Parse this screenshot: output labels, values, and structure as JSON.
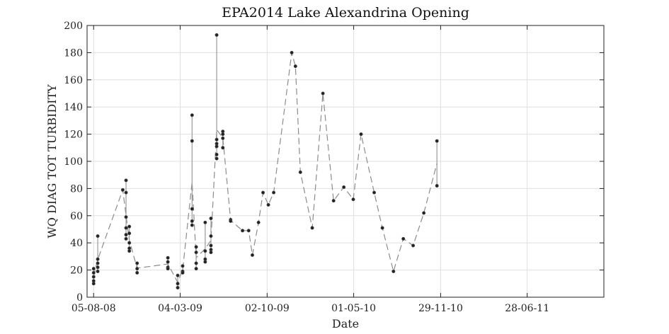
{
  "chart_data": {
    "type": "scatter",
    "title": "EPA2014 Lake Alexandrina Opening",
    "xlabel": "Date",
    "ylabel": "WQ DIAG TOT TURBIDITY",
    "xlim": [
      "2008-07-20",
      "2012-01-01"
    ],
    "ylim": [
      0,
      200
    ],
    "yticks": [
      0,
      20,
      40,
      60,
      80,
      100,
      120,
      140,
      160,
      180,
      200
    ],
    "xticks": [
      {
        "date": "2008-08-05",
        "label": "05-08-08"
      },
      {
        "date": "2009-03-04",
        "label": "04-03-09"
      },
      {
        "date": "2009-10-02",
        "label": "02-10-09"
      },
      {
        "date": "2010-05-01",
        "label": "01-05-10"
      },
      {
        "date": "2010-11-29",
        "label": "29-11-10"
      },
      {
        "date": "2011-06-28",
        "label": "28-06-11"
      }
    ],
    "grid": true,
    "line_style": "dashed gray connecting sample means; solid gray vertical range per sampling date",
    "samples": [
      {
        "date": "2008-08-05",
        "values": [
          21,
          18,
          15,
          12,
          10
        ]
      },
      {
        "date": "2008-08-15",
        "values": [
          45,
          28,
          25,
          22,
          19
        ]
      },
      {
        "date": "2008-10-15",
        "values": [
          79
        ]
      },
      {
        "date": "2008-10-23",
        "values": [
          86,
          77,
          59,
          51,
          46,
          43
        ]
      },
      {
        "date": "2008-10-31",
        "values": [
          52,
          47,
          40,
          36,
          34
        ]
      },
      {
        "date": "2008-11-19",
        "values": [
          25,
          21,
          18
        ]
      },
      {
        "date": "2009-02-02",
        "values": [
          29,
          26,
          22,
          21
        ]
      },
      {
        "date": "2009-02-26",
        "values": [
          16,
          10,
          7
        ]
      },
      {
        "date": "2009-03-10",
        "values": [
          23,
          19,
          18
        ]
      },
      {
        "date": "2009-04-02",
        "values": [
          134,
          115,
          65,
          56,
          53
        ]
      },
      {
        "date": "2009-04-12",
        "values": [
          37,
          33,
          25,
          21
        ]
      },
      {
        "date": "2009-05-04",
        "values": [
          55,
          34,
          28,
          26
        ]
      },
      {
        "date": "2009-05-18",
        "values": [
          58,
          45,
          38,
          35,
          33
        ]
      },
      {
        "date": "2009-06-01",
        "values": [
          193,
          116,
          113,
          111,
          105,
          102
        ]
      },
      {
        "date": "2009-06-16",
        "values": [
          122,
          120,
          117,
          110
        ]
      },
      {
        "date": "2009-07-05",
        "values": [
          57,
          56
        ]
      },
      {
        "date": "2009-08-03",
        "values": [
          49
        ]
      },
      {
        "date": "2009-08-18",
        "values": [
          49
        ]
      },
      {
        "date": "2009-08-27",
        "values": [
          31
        ]
      },
      {
        "date": "2009-09-11",
        "values": [
          55
        ]
      },
      {
        "date": "2009-09-22",
        "values": [
          77
        ]
      },
      {
        "date": "2009-10-05",
        "values": [
          68
        ]
      },
      {
        "date": "2009-10-18",
        "values": [
          77
        ]
      },
      {
        "date": "2009-12-01",
        "values": [
          180
        ]
      },
      {
        "date": "2009-12-10",
        "values": [
          170
        ]
      },
      {
        "date": "2009-12-22",
        "values": [
          92
        ]
      },
      {
        "date": "2010-01-20",
        "values": [
          51
        ]
      },
      {
        "date": "2010-02-15",
        "values": [
          150
        ]
      },
      {
        "date": "2010-03-13",
        "values": [
          71
        ]
      },
      {
        "date": "2010-04-07",
        "values": [
          81
        ]
      },
      {
        "date": "2010-04-30",
        "values": [
          72
        ]
      },
      {
        "date": "2010-05-19",
        "values": [
          120
        ]
      },
      {
        "date": "2010-06-20",
        "values": [
          77
        ]
      },
      {
        "date": "2010-07-10",
        "values": [
          51
        ]
      },
      {
        "date": "2010-08-06",
        "values": [
          19
        ]
      },
      {
        "date": "2010-08-30",
        "values": [
          43
        ]
      },
      {
        "date": "2010-09-23",
        "values": [
          38
        ]
      },
      {
        "date": "2010-10-19",
        "values": [
          62
        ]
      },
      {
        "date": "2010-11-20",
        "values": [
          115,
          82
        ]
      }
    ]
  }
}
